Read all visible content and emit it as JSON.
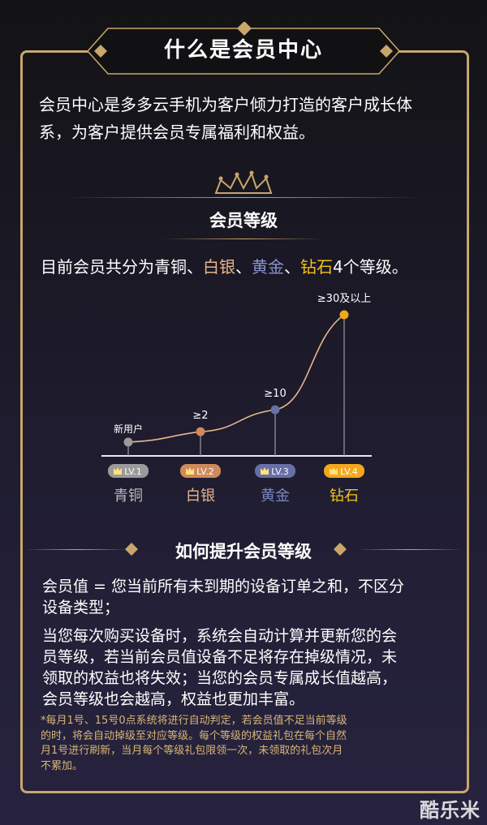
{
  "header": {
    "title": "什么是会员中心"
  },
  "intro": {
    "lines": [
      "会员中心是多多云手机为客户倾力打造的客户成长体",
      "系，为客户提供会员专属福利和权益。"
    ]
  },
  "levels_section": {
    "title": "会员等级",
    "summary_prefix": "目前会员共分为青铜、",
    "silver": "白银",
    "sep1": "、",
    "gold": "黄金",
    "sep2": "、",
    "diamond": "钻石",
    "summary_suffix": "4个等级。"
  },
  "chart_data": {
    "type": "line",
    "categories": [
      "LV.1",
      "LV.2",
      "LV.3",
      "LV.4"
    ],
    "level_names": [
      "青铜",
      "白银",
      "黄金",
      "钻石"
    ],
    "point_labels": [
      "新用户",
      "≥2",
      "≥10",
      "≥30及以上"
    ],
    "values": [
      0,
      2,
      10,
      30
    ],
    "colors": [
      "#9a9a9a",
      "#d0895a",
      "#6670a6",
      "#f2a81a"
    ],
    "name_colors": [
      "#b9b9b9",
      "#e7b58c",
      "#7a84c0",
      "#f2c21c"
    ]
  },
  "upgrade_section": {
    "title": "如何提升会员等级",
    "para1": [
      "会员值 = 您当前所有未到期的设备订单之和，不区分",
      "设备类型；"
    ],
    "para2": [
      "当您每次购买设备时，系统会自动计算并更新您的会",
      "员等级，若当前会员值设备不足将存在掉级情况，未",
      "领取的权益也将失效；当您的会员专属成长值越高，",
      "会员等级也会越高，权益也更加丰富。"
    ],
    "note": [
      "*每月1号、15号0点系统将进行自动判定，若会员值不足当前等级",
      "的时，将会自动掉级至对应等级。每个等级的权益礼包在每个自然",
      "月1号进行刷新，当月每个等级礼包限领一次，未领取的礼包次月",
      "不累加。"
    ]
  },
  "watermark": "酷乐米",
  "colors": {
    "gold": "#c9a66b"
  }
}
